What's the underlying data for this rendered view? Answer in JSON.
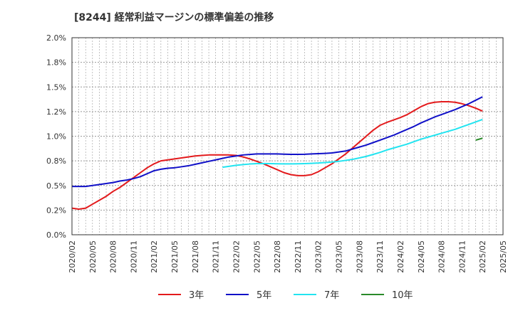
{
  "chart_data": {
    "type": "line",
    "title": "[8244]  経常利益マージンの標準偏差の推移",
    "xlabel": "",
    "ylabel": "",
    "ylim": [
      0.0,
      2.0
    ],
    "yticks": [
      "0.0%",
      "0.2%",
      "0.5%",
      "0.8%",
      "1.0%",
      "1.2%",
      "1.5%",
      "1.8%",
      "2.0%"
    ],
    "xticks": [
      "2020/02",
      "2020/05",
      "2020/08",
      "2020/11",
      "2021/02",
      "2021/05",
      "2021/08",
      "2021/11",
      "2022/02",
      "2022/05",
      "2022/08",
      "2022/11",
      "2023/02",
      "2023/05",
      "2023/08",
      "2023/11",
      "2024/02",
      "2024/05",
      "2024/08",
      "2024/11",
      "2025/02",
      "2025/05"
    ],
    "grid": true,
    "legend_position": "bottom",
    "series": [
      {
        "name": "3年",
        "color": "#e31a1c",
        "points": [
          [
            "2020/02",
            0.27
          ],
          [
            "2020/03",
            0.26
          ],
          [
            "2020/04",
            0.27
          ],
          [
            "2020/05",
            0.31
          ],
          [
            "2020/06",
            0.35
          ],
          [
            "2020/07",
            0.39
          ],
          [
            "2020/08",
            0.44
          ],
          [
            "2020/09",
            0.48
          ],
          [
            "2020/10",
            0.53
          ],
          [
            "2020/11",
            0.58
          ],
          [
            "2020/12",
            0.63
          ],
          [
            "2021/01",
            0.68
          ],
          [
            "2021/02",
            0.72
          ],
          [
            "2021/03",
            0.75
          ],
          [
            "2021/04",
            0.76
          ],
          [
            "2021/05",
            0.77
          ],
          [
            "2021/06",
            0.78
          ],
          [
            "2021/07",
            0.79
          ],
          [
            "2021/08",
            0.8
          ],
          [
            "2021/09",
            0.805
          ],
          [
            "2021/10",
            0.81
          ],
          [
            "2021/11",
            0.81
          ],
          [
            "2021/12",
            0.81
          ],
          [
            "2022/01",
            0.81
          ],
          [
            "2022/02",
            0.805
          ],
          [
            "2022/03",
            0.79
          ],
          [
            "2022/04",
            0.77
          ],
          [
            "2022/05",
            0.745
          ],
          [
            "2022/06",
            0.72
          ],
          [
            "2022/07",
            0.69
          ],
          [
            "2022/08",
            0.66
          ],
          [
            "2022/09",
            0.63
          ],
          [
            "2022/10",
            0.61
          ],
          [
            "2022/11",
            0.6
          ],
          [
            "2022/12",
            0.6
          ],
          [
            "2023/01",
            0.61
          ],
          [
            "2023/02",
            0.64
          ],
          [
            "2023/03",
            0.68
          ],
          [
            "2023/04",
            0.72
          ],
          [
            "2023/05",
            0.77
          ],
          [
            "2023/06",
            0.82
          ],
          [
            "2023/07",
            0.88
          ],
          [
            "2023/08",
            0.94
          ],
          [
            "2023/09",
            1.0
          ],
          [
            "2023/10",
            1.06
          ],
          [
            "2023/11",
            1.11
          ],
          [
            "2023/12",
            1.14
          ],
          [
            "2024/01",
            1.165
          ],
          [
            "2024/02",
            1.19
          ],
          [
            "2024/03",
            1.22
          ],
          [
            "2024/04",
            1.26
          ],
          [
            "2024/05",
            1.3
          ],
          [
            "2024/06",
            1.33
          ],
          [
            "2024/07",
            1.345
          ],
          [
            "2024/08",
            1.35
          ],
          [
            "2024/09",
            1.35
          ],
          [
            "2024/10",
            1.345
          ],
          [
            "2024/11",
            1.33
          ],
          [
            "2024/12",
            1.31
          ],
          [
            "2025/01",
            1.285
          ],
          [
            "2025/02",
            1.255
          ]
        ]
      },
      {
        "name": "5年",
        "color": "#1010c8",
        "points": [
          [
            "2020/02",
            0.49
          ],
          [
            "2020/03",
            0.49
          ],
          [
            "2020/04",
            0.49
          ],
          [
            "2020/05",
            0.5
          ],
          [
            "2020/06",
            0.51
          ],
          [
            "2020/07",
            0.52
          ],
          [
            "2020/08",
            0.53
          ],
          [
            "2020/09",
            0.545
          ],
          [
            "2020/10",
            0.555
          ],
          [
            "2020/11",
            0.57
          ],
          [
            "2020/12",
            0.59
          ],
          [
            "2021/01",
            0.62
          ],
          [
            "2021/02",
            0.65
          ],
          [
            "2021/03",
            0.665
          ],
          [
            "2021/04",
            0.675
          ],
          [
            "2021/05",
            0.68
          ],
          [
            "2021/06",
            0.69
          ],
          [
            "2021/07",
            0.7
          ],
          [
            "2021/08",
            0.715
          ],
          [
            "2021/09",
            0.73
          ],
          [
            "2021/10",
            0.745
          ],
          [
            "2021/11",
            0.76
          ],
          [
            "2021/12",
            0.775
          ],
          [
            "2022/01",
            0.79
          ],
          [
            "2022/02",
            0.8
          ],
          [
            "2022/03",
            0.81
          ],
          [
            "2022/04",
            0.815
          ],
          [
            "2022/05",
            0.82
          ],
          [
            "2022/06",
            0.82
          ],
          [
            "2022/07",
            0.82
          ],
          [
            "2022/08",
            0.82
          ],
          [
            "2022/09",
            0.818
          ],
          [
            "2022/10",
            0.816
          ],
          [
            "2022/11",
            0.816
          ],
          [
            "2022/12",
            0.817
          ],
          [
            "2023/01",
            0.82
          ],
          [
            "2023/02",
            0.823
          ],
          [
            "2023/03",
            0.826
          ],
          [
            "2023/04",
            0.83
          ],
          [
            "2023/05",
            0.84
          ],
          [
            "2023/06",
            0.85
          ],
          [
            "2023/07",
            0.87
          ],
          [
            "2023/08",
            0.89
          ],
          [
            "2023/09",
            0.91
          ],
          [
            "2023/10",
            0.935
          ],
          [
            "2023/11",
            0.96
          ],
          [
            "2023/12",
            0.985
          ],
          [
            "2024/01",
            1.01
          ],
          [
            "2024/02",
            1.04
          ],
          [
            "2024/03",
            1.07
          ],
          [
            "2024/04",
            1.1
          ],
          [
            "2024/05",
            1.135
          ],
          [
            "2024/06",
            1.165
          ],
          [
            "2024/07",
            1.195
          ],
          [
            "2024/08",
            1.22
          ],
          [
            "2024/09",
            1.245
          ],
          [
            "2024/10",
            1.27
          ],
          [
            "2024/11",
            1.3
          ],
          [
            "2024/12",
            1.33
          ],
          [
            "2025/01",
            1.365
          ],
          [
            "2025/02",
            1.4
          ]
        ]
      },
      {
        "name": "7年",
        "color": "#22e4f0",
        "points": [
          [
            "2021/12",
            0.685
          ],
          [
            "2022/01",
            0.695
          ],
          [
            "2022/02",
            0.705
          ],
          [
            "2022/03",
            0.712
          ],
          [
            "2022/04",
            0.718
          ],
          [
            "2022/05",
            0.722
          ],
          [
            "2022/06",
            0.723
          ],
          [
            "2022/07",
            0.722
          ],
          [
            "2022/08",
            0.72
          ],
          [
            "2022/09",
            0.719
          ],
          [
            "2022/10",
            0.719
          ],
          [
            "2022/11",
            0.72
          ],
          [
            "2022/12",
            0.722
          ],
          [
            "2023/01",
            0.725
          ],
          [
            "2023/02",
            0.728
          ],
          [
            "2023/03",
            0.733
          ],
          [
            "2023/04",
            0.738
          ],
          [
            "2023/05",
            0.745
          ],
          [
            "2023/06",
            0.755
          ],
          [
            "2023/07",
            0.765
          ],
          [
            "2023/08",
            0.78
          ],
          [
            "2023/09",
            0.795
          ],
          [
            "2023/10",
            0.815
          ],
          [
            "2023/11",
            0.835
          ],
          [
            "2023/12",
            0.86
          ],
          [
            "2024/01",
            0.88
          ],
          [
            "2024/02",
            0.9
          ],
          [
            "2024/03",
            0.92
          ],
          [
            "2024/04",
            0.945
          ],
          [
            "2024/05",
            0.97
          ],
          [
            "2024/06",
            0.99
          ],
          [
            "2024/07",
            1.01
          ],
          [
            "2024/08",
            1.03
          ],
          [
            "2024/09",
            1.05
          ],
          [
            "2024/10",
            1.07
          ],
          [
            "2024/11",
            1.095
          ],
          [
            "2024/12",
            1.12
          ],
          [
            "2025/01",
            1.145
          ],
          [
            "2025/02",
            1.17
          ]
        ]
      },
      {
        "name": "10年",
        "color": "#2a8a2a",
        "points": [
          [
            "2025/01",
            0.96
          ],
          [
            "2025/02",
            0.98
          ]
        ]
      }
    ]
  }
}
